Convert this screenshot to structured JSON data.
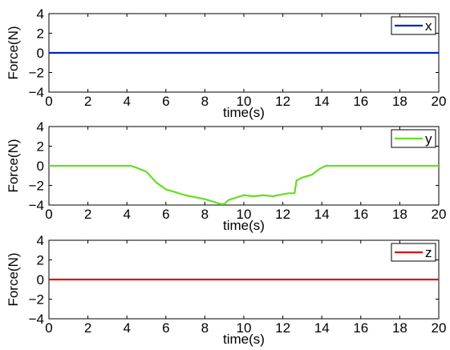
{
  "chart_data": [
    {
      "type": "line",
      "xlabel": "time(s)",
      "ylabel": "Force(N)",
      "xlim": [
        0,
        20
      ],
      "ylim": [
        -4,
        4
      ],
      "xticks": [
        "0",
        "2",
        "4",
        "6",
        "8",
        "10",
        "12",
        "14",
        "16",
        "18",
        "20"
      ],
      "yticks": [
        "4",
        "2",
        "0",
        "−2",
        "−4"
      ],
      "grid": false,
      "legend_position": "top-right",
      "series": [
        {
          "name": "x",
          "color": "#0022cc",
          "x": [
            0,
            20
          ],
          "y": [
            0,
            0
          ]
        }
      ]
    },
    {
      "type": "line",
      "xlabel": "time(s)",
      "ylabel": "Force(N)",
      "xlim": [
        0,
        20
      ],
      "ylim": [
        -4,
        4
      ],
      "xticks": [
        "0",
        "2",
        "4",
        "6",
        "8",
        "10",
        "12",
        "14",
        "16",
        "18",
        "20"
      ],
      "yticks": [
        "4",
        "2",
        "0",
        "−2",
        "−4"
      ],
      "grid": false,
      "legend_position": "top-right",
      "series": [
        {
          "name": "y",
          "color": "#66dd22",
          "x": [
            0,
            4.2,
            4.5,
            5,
            5.5,
            6,
            6.5,
            7,
            7.5,
            8,
            8.5,
            8.8,
            9.0,
            9.2,
            9.5,
            10,
            10.5,
            11,
            11.5,
            12,
            12.3,
            12.6,
            12.7,
            13.0,
            13.5,
            13.9,
            14.2,
            15,
            20
          ],
          "y": [
            0,
            0,
            -0.2,
            -0.6,
            -1.7,
            -2.4,
            -2.7,
            -3.0,
            -3.2,
            -3.4,
            -3.7,
            -3.9,
            -3.9,
            -3.5,
            -3.3,
            -3.0,
            -3.1,
            -3.0,
            -3.1,
            -2.9,
            -2.8,
            -2.8,
            -1.5,
            -1.2,
            -0.9,
            -0.3,
            0,
            0,
            0
          ]
        }
      ]
    },
    {
      "type": "line",
      "xlabel": "time(s)",
      "ylabel": "Force(N)",
      "xlim": [
        0,
        20
      ],
      "ylim": [
        -4,
        4
      ],
      "xticks": [
        "0",
        "2",
        "4",
        "6",
        "8",
        "10",
        "12",
        "14",
        "16",
        "18",
        "20"
      ],
      "yticks": [
        "4",
        "2",
        "0",
        "−2",
        "−4"
      ],
      "grid": false,
      "legend_position": "top-right",
      "series": [
        {
          "name": "z",
          "color": "#dd1111",
          "x": [
            0,
            20
          ],
          "y": [
            0,
            0
          ]
        }
      ]
    }
  ]
}
